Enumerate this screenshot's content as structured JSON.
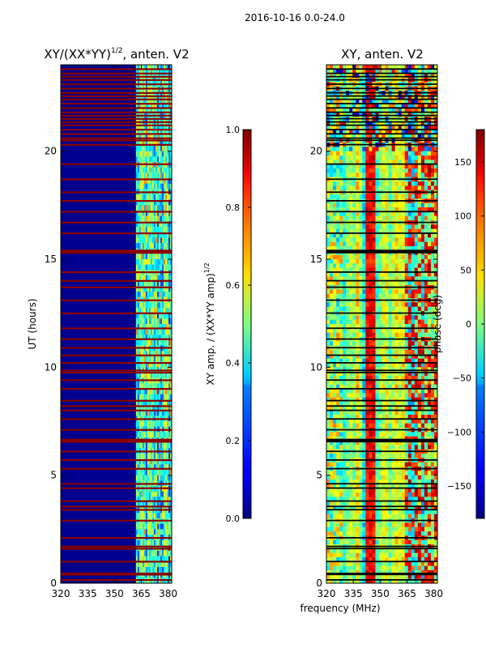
{
  "figure": {
    "suptitle": "2016-10-16 0.0-24.0",
    "xlabel": "frequency (MHz)"
  },
  "chart_data": [
    {
      "type": "heatmap",
      "title_main": "XY/(XX*YY)",
      "title_sup": "1/2",
      "title_tail": ", anten. V2",
      "xlabel": "",
      "ylabel": "UT (hours)",
      "x_ticks": [
        320,
        335,
        350,
        365,
        380
      ],
      "y_ticks": [
        0,
        5,
        10,
        15,
        20
      ],
      "xlim": [
        320,
        382
      ],
      "ylim": [
        0,
        24
      ],
      "colorbar": {
        "label_main": "XY amp. / (XX*YY amp)",
        "label_sup": "1/2",
        "range": [
          0.0,
          1.0
        ],
        "ticks": [
          "0.0",
          "0.2",
          "0.4",
          "0.6",
          "0.8",
          "1.0"
        ],
        "colormap": "jet"
      },
      "description_values": {
        "quiet_band_level": 0.05,
        "active_band_start_mhz": 360,
        "flagged_level": 0.9
      }
    },
    {
      "type": "heatmap",
      "title_main": "XY, anten. V2",
      "xlabel": "",
      "ylabel": "",
      "x_ticks": [
        320,
        335,
        350,
        365,
        380
      ],
      "y_ticks": [
        0,
        5,
        10,
        15,
        20
      ],
      "xlim": [
        320,
        382
      ],
      "ylim": [
        0,
        24
      ],
      "colorbar": {
        "label_main": "phase (deg)",
        "range": [
          -180,
          180
        ],
        "ticks": [
          "−150",
          "−100",
          "−50",
          "0",
          "50",
          "100",
          "150"
        ],
        "colormap": "jet"
      }
    }
  ],
  "flagged_hours": [
    0.15,
    0.4,
    0.45,
    1.0,
    1.6,
    1.7,
    2.1,
    2.9,
    3.4,
    3.55,
    3.8,
    4.4,
    4.6,
    5.3,
    5.7,
    6.1,
    6.55,
    6.6,
    6.65,
    7.1,
    7.6,
    8.0,
    8.2,
    8.45,
    9.0,
    9.4,
    9.75,
    9.85,
    10.2,
    10.55,
    10.9,
    11.3,
    11.8,
    12.5,
    13.1,
    13.7,
    14.0,
    14.4,
    15.3,
    15.35,
    15.4,
    16.2,
    16.7,
    17.2,
    17.7,
    18.1,
    18.7,
    19.4,
    20.3,
    20.5,
    20.6,
    20.8,
    21.0,
    21.2,
    21.35,
    21.5,
    21.65,
    21.8,
    22.0,
    22.2,
    22.4,
    22.55,
    22.7,
    22.9,
    23.1,
    23.3,
    23.45,
    23.6,
    23.8
  ]
}
